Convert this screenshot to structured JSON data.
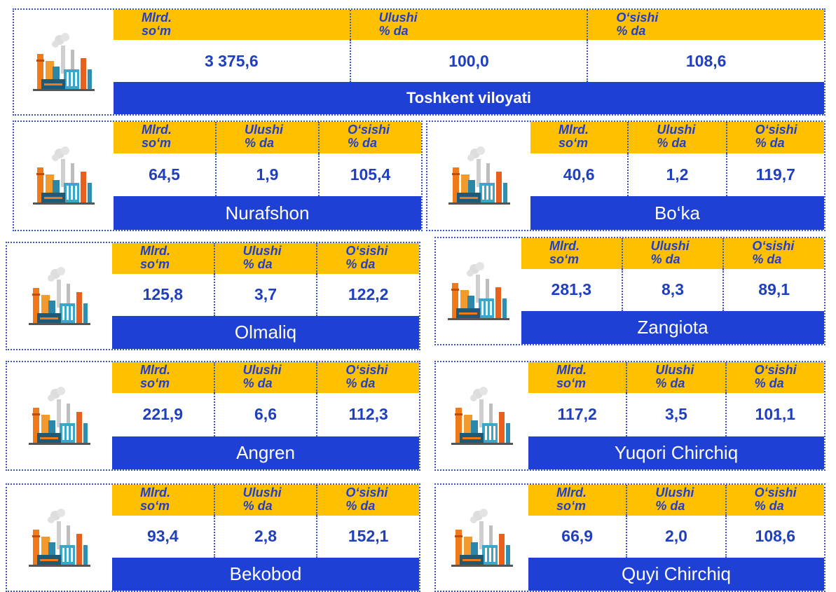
{
  "columns": [
    {
      "line1": "Mlrd.",
      "line2": "so‘m"
    },
    {
      "line1": "Ulushi",
      "line2": "% da"
    },
    {
      "line1": "O‘sishi",
      "line2": "% da"
    }
  ],
  "panels": [
    {
      "name": "Toshkent viloyati",
      "values": [
        "3 375,6",
        "100,0",
        "108,6"
      ]
    },
    {
      "name": "Nurafshon",
      "values": [
        "64,5",
        "1,9",
        "105,4"
      ]
    },
    {
      "name": "Bo‘ka",
      "values": [
        "40,6",
        "1,2",
        "119,7"
      ]
    },
    {
      "name": "Olmaliq",
      "values": [
        "125,8",
        "3,7",
        "122,2"
      ]
    },
    {
      "name": "Zangiota",
      "values": [
        "281,3",
        "8,3",
        "89,1"
      ]
    },
    {
      "name": "Angren",
      "values": [
        "221,9",
        "6,6",
        "112,3"
      ]
    },
    {
      "name": "Yuqori Chirchiq",
      "values": [
        "117,2",
        "3,5",
        "101,1"
      ]
    },
    {
      "name": "Bekobod",
      "values": [
        "93,4",
        "2,8",
        "152,1"
      ]
    },
    {
      "name": "Quyi Chirchiq",
      "values": [
        "66,9",
        "2,0",
        "108,6"
      ]
    }
  ]
}
